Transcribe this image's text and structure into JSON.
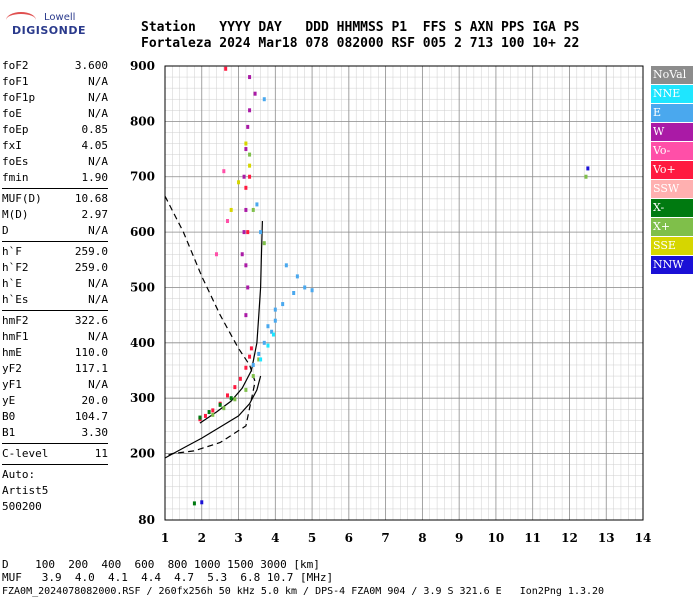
{
  "logo": {
    "top": "Lowell",
    "main": "DIGISONDE"
  },
  "header": {
    "line1": "Station   YYYY DAY   DDD HHMMSS P1  FFS S AXN PPS IGA PS",
    "line2": "Fortaleza 2024 Mar18 078 082000 RSF 005 2 713 100 10+ 22"
  },
  "params": [
    [
      {
        "k": "foF2",
        "v": "3.600"
      },
      {
        "k": "foF1",
        "v": "N/A"
      },
      {
        "k": "foF1p",
        "v": "N/A"
      },
      {
        "k": "foE",
        "v": "N/A"
      },
      {
        "k": "foEp",
        "v": "0.85"
      },
      {
        "k": "fxI",
        "v": "4.05"
      },
      {
        "k": "foEs",
        "v": "N/A"
      },
      {
        "k": "fmin",
        "v": "1.90"
      }
    ],
    [
      {
        "k": "MUF(D)",
        "v": "10.68"
      },
      {
        "k": "M(D)",
        "v": "2.97"
      },
      {
        "k": "D",
        "v": "N/A"
      }
    ],
    [
      {
        "k": "h`F",
        "v": "259.0"
      },
      {
        "k": "h`F2",
        "v": "259.0"
      },
      {
        "k": "h`E",
        "v": "N/A"
      },
      {
        "k": "h`Es",
        "v": "N/A"
      }
    ],
    [
      {
        "k": "hmF2",
        "v": "322.6"
      },
      {
        "k": "hmF1",
        "v": "N/A"
      },
      {
        "k": "hmE",
        "v": "110.0"
      },
      {
        "k": "yF2",
        "v": "117.1"
      },
      {
        "k": "yF1",
        "v": "N/A"
      },
      {
        "k": "yE",
        "v": "20.0"
      },
      {
        "k": "B0",
        "v": "104.7"
      },
      {
        "k": "B1",
        "v": "3.30"
      }
    ],
    [
      {
        "k": "C-level",
        "v": "11"
      }
    ]
  ],
  "auto": [
    "Auto:",
    "Artist5",
    "500200"
  ],
  "legend": [
    {
      "label": "NoVal",
      "color": "#8c8c8c"
    },
    {
      "label": "NNE",
      "color": "#1ee6ff"
    },
    {
      "label": "E",
      "color": "#4aa8ee"
    },
    {
      "label": "W",
      "color": "#aa1aa6"
    },
    {
      "label": "Vo-",
      "color": "#ff4fa8"
    },
    {
      "label": "Vo+",
      "color": "#ff1a40"
    },
    {
      "label": "SSW",
      "color": "#ffb0b0"
    },
    {
      "label": "X-",
      "color": "#007a10"
    },
    {
      "label": "X+",
      "color": "#7fbf4a"
    },
    {
      "label": "SSE",
      "color": "#d6d600"
    },
    {
      "label": "NNW",
      "color": "#1a10d6"
    }
  ],
  "footer": {
    "d_line": "D    100  200  400  600  800 1000 1500 3000 [km]",
    "muf_line": "MUF   3.9  4.0  4.1  4.4  4.7  5.3  6.8 10.7 [MHz]",
    "info_line": "FZA0M_2024078082000.RSF / 260fx256h 50 kHz 5.0 km / DPS-4 FZA0M 904 / 3.9 S 321.6 E   Ion2Png 1.3.20"
  },
  "chart_data": {
    "type": "scatter",
    "xlim": [
      1,
      14
    ],
    "ylim": [
      80,
      900
    ],
    "x_ticks": [
      1,
      2,
      3,
      4,
      5,
      6,
      7,
      8,
      9,
      10,
      11,
      12,
      13,
      14
    ],
    "y_ticks": [
      80,
      200,
      300,
      400,
      500,
      600,
      700,
      800,
      900
    ],
    "grid": true,
    "series": [
      {
        "legend": "Vo+",
        "color": "#ff1a40",
        "points": [
          [
            1.95,
            262
          ],
          [
            2.1,
            268
          ],
          [
            2.3,
            278
          ],
          [
            2.5,
            290
          ],
          [
            2.7,
            305
          ],
          [
            2.9,
            320
          ],
          [
            3.05,
            335
          ],
          [
            3.2,
            355
          ],
          [
            3.3,
            375
          ],
          [
            3.35,
            390
          ],
          [
            3.25,
            600
          ],
          [
            3.2,
            680
          ],
          [
            3.3,
            700
          ],
          [
            2.65,
            895
          ]
        ]
      },
      {
        "legend": "W",
        "color": "#aa1aa6",
        "points": [
          [
            3.1,
            560
          ],
          [
            3.15,
            600
          ],
          [
            3.2,
            640
          ],
          [
            3.15,
            700
          ],
          [
            3.2,
            750
          ],
          [
            3.25,
            790
          ],
          [
            3.3,
            820
          ],
          [
            3.45,
            850
          ],
          [
            3.3,
            880
          ],
          [
            3.2,
            450
          ],
          [
            3.25,
            500
          ],
          [
            3.2,
            540
          ]
        ]
      },
      {
        "legend": "E",
        "color": "#4aa8ee",
        "points": [
          [
            3.4,
            360
          ],
          [
            3.55,
            380
          ],
          [
            3.7,
            400
          ],
          [
            3.9,
            420
          ],
          [
            4.0,
            440
          ],
          [
            4.2,
            470
          ],
          [
            4.5,
            490
          ],
          [
            4.8,
            500
          ],
          [
            5.0,
            495
          ],
          [
            4.6,
            520
          ],
          [
            4.3,
            540
          ],
          [
            4.0,
            460
          ],
          [
            3.8,
            430
          ],
          [
            3.6,
            600
          ],
          [
            3.5,
            650
          ],
          [
            3.7,
            840
          ]
        ]
      },
      {
        "legend": "X+",
        "color": "#7fbf4a",
        "points": [
          [
            2.3,
            270
          ],
          [
            2.6,
            282
          ],
          [
            2.9,
            298
          ],
          [
            3.2,
            315
          ],
          [
            3.4,
            340
          ],
          [
            3.55,
            370
          ],
          [
            3.7,
            580
          ],
          [
            3.4,
            640
          ],
          [
            3.3,
            740
          ],
          [
            12.45,
            700
          ]
        ]
      },
      {
        "legend": "X-",
        "color": "#007a10",
        "points": [
          [
            1.95,
            265
          ],
          [
            2.2,
            275
          ],
          [
            2.5,
            288
          ],
          [
            2.8,
            300
          ],
          [
            1.8,
            110
          ]
        ]
      },
      {
        "legend": "SSE",
        "color": "#d6d600",
        "points": [
          [
            2.8,
            640
          ],
          [
            3.0,
            690
          ],
          [
            3.2,
            760
          ],
          [
            3.3,
            720
          ]
        ]
      },
      {
        "legend": "Vo-",
        "color": "#ff4fa8",
        "points": [
          [
            2.4,
            560
          ],
          [
            2.7,
            620
          ],
          [
            2.6,
            710
          ]
        ]
      },
      {
        "legend": "NNW",
        "color": "#1a10d6",
        "points": [
          [
            12.5,
            715
          ],
          [
            2.0,
            112
          ]
        ]
      },
      {
        "legend": "NNE",
        "color": "#1ee6ff",
        "points": [
          [
            3.6,
            370
          ],
          [
            3.8,
            395
          ],
          [
            3.95,
            415
          ]
        ]
      }
    ],
    "profiles": [
      {
        "style": "solid",
        "points": [
          [
            1.95,
            255
          ],
          [
            2.4,
            275
          ],
          [
            2.8,
            295
          ],
          [
            3.1,
            318
          ],
          [
            3.35,
            350
          ],
          [
            3.5,
            400
          ],
          [
            3.55,
            450
          ],
          [
            3.6,
            500
          ],
          [
            3.62,
            550
          ],
          [
            3.65,
            620
          ]
        ]
      },
      {
        "style": "dashed",
        "points": [
          [
            1.0,
            665
          ],
          [
            1.5,
            600
          ],
          [
            2.0,
            520
          ],
          [
            2.5,
            450
          ],
          [
            3.0,
            390
          ],
          [
            3.3,
            360
          ],
          [
            3.45,
            330
          ],
          [
            3.2,
            250
          ],
          [
            2.5,
            220
          ],
          [
            1.8,
            205
          ],
          [
            1.2,
            200
          ],
          [
            1.0,
            195
          ]
        ]
      },
      {
        "style": "solid",
        "points": [
          [
            1.0,
            192
          ],
          [
            1.5,
            210
          ],
          [
            2.0,
            228
          ],
          [
            2.5,
            248
          ],
          [
            3.0,
            268
          ],
          [
            3.3,
            290
          ],
          [
            3.5,
            315
          ],
          [
            3.6,
            340
          ]
        ]
      }
    ]
  }
}
